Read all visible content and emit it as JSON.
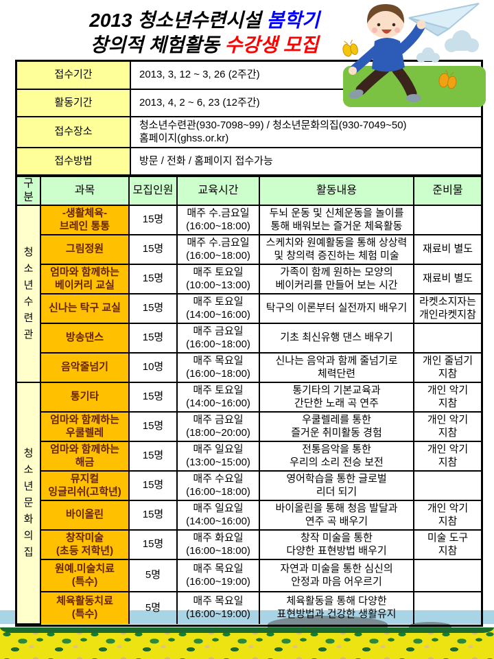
{
  "title": {
    "line1_main": "2013 청소년수련시설 ",
    "line1_accent": "봄학기",
    "line2_main": "창의적 체험활동 ",
    "line2_accent": "수강생 모집"
  },
  "info_table": {
    "rows": [
      {
        "label": "접수기간",
        "value": "2013, 3, 12 ~ 3, 26 (2주간)"
      },
      {
        "label": "활동기간",
        "value": "2013, 4, 2 ~ 6, 23 (12주간)"
      },
      {
        "label": "접수장소",
        "value": "청소년수련관(930-7098~99) / 청소년문화의집(930-7049~50)\n홈페이지(ghss.or.kr)"
      },
      {
        "label": "접수방법",
        "value": "방문 / 전화 / 홈페이지 접수가능"
      }
    ]
  },
  "program_table": {
    "headers": [
      "구분",
      "과목",
      "모집인원",
      "교육시간",
      "활동내용",
      "준비물"
    ],
    "groups": [
      {
        "name": "청소년수련관",
        "rows": [
          {
            "subject": "-생활체육-\n브레인 통통",
            "capacity": "15명",
            "schedule": "매주 수.금요일\n(16:00~18:00)",
            "content": "두뇌 운동 및 신체운동을 놀이를\n통해 배워보는 즐거운 체육활동",
            "materials": ""
          },
          {
            "subject": "그림정원",
            "capacity": "15명",
            "schedule": "매주 수.금요일\n(16:00~18:00)",
            "content": "스케치와 원예활동을 통해 상상력\n및 창의력 증진하는 체험 미술",
            "materials": "재료비 별도"
          },
          {
            "subject": "엄마와 함께하는\n베이커리 교실",
            "capacity": "15명",
            "schedule": "매주 토요일\n(10:00~13:00)",
            "content": "가족이 함께 원하는 모양의\n베이커리를 만들어 보는 시간",
            "materials": "재료비 별도"
          },
          {
            "subject": "신나는 탁구 교실",
            "capacity": "15명",
            "schedule": "매주 토요일\n(14:00~16:00)",
            "content": "탁구의 이론부터 실전까지 배우기",
            "materials": "라켓소지자는\n개인라켓지참"
          },
          {
            "subject": "방송댄스",
            "capacity": "15명",
            "schedule": "매주 금요일\n(16:00~18:00)",
            "content": "기초 최신유행 댄스 배우기",
            "materials": ""
          },
          {
            "subject": "음악줄넘기",
            "capacity": "10명",
            "schedule": "매주 목요일\n(16:00~18:00)",
            "content": "신나는 음악과 함께 줄넘기로\n체력단련",
            "materials": "개인 줄넘기\n지참"
          }
        ]
      },
      {
        "name": "청소년문화의집",
        "rows": [
          {
            "subject": "통기타",
            "capacity": "15명",
            "schedule": "매주 토요일\n(14:00~16:00)",
            "content": "통기타의 기본교육과\n간단한 노래 곡 연주",
            "materials": "개인 악기\n지참"
          },
          {
            "subject": "엄마와 함께하는\n우쿨렐레",
            "capacity": "15명",
            "schedule": "매주 금요일\n(18:00~20:00)",
            "content": "우쿨렐레를 통한\n즐거운 취미활동 경험",
            "materials": "개인 악기\n지참"
          },
          {
            "subject": "엄마와 함께하는\n해금",
            "capacity": "15명",
            "schedule": "매주 일요일\n(13:00~15:00)",
            "content": "전통음악을 통한\n우리의 소리 전승 보전",
            "materials": "개인 악기\n지참"
          },
          {
            "subject": "뮤지컬\n잉글리쉬(고학년)",
            "capacity": "15명",
            "schedule": "매주 수요일\n(16:00~18:00)",
            "content": "영어학습을 통한 글로벌\n리더 되기",
            "materials": ""
          },
          {
            "subject": "바이올린",
            "capacity": "15명",
            "schedule": "매주 일요일\n(14:00~16:00)",
            "content": "바이올린을 통해 청음 발달과\n연주 곡 배우기",
            "materials": "개인 악기\n지참"
          },
          {
            "subject": "창작미술\n(초등 저학년)",
            "capacity": "15명",
            "schedule": "매주 화요일\n(16:00~18:00)",
            "content": "창작 미술을 통한\n다양한 표현방법 배우기",
            "materials": "미술 도구\n지참"
          },
          {
            "subject": "원예.미술치료\n(특수)",
            "capacity": "5명",
            "schedule": "매주 목요일\n(16:00~19:00)",
            "content": "자연과 미술을 통한 심신의\n안정과 마음 어우르기",
            "materials": ""
          },
          {
            "subject": "체육활동치료\n(특수)",
            "capacity": "5명",
            "schedule": "매주 목요일\n(16:00~19:00)",
            "content": "체육활동을 통해 다양한\n표현방법과 건강한 생활유지",
            "materials": ""
          }
        ]
      }
    ]
  },
  "decorations": {
    "top_right_illustration": "boy-with-paper-airplane",
    "butterflies": "yellow-butterflies",
    "bottom_strip": "canola-flower-field-landscape"
  },
  "colors": {
    "title_accent_blue": "#0000FF",
    "title_accent_red": "#FF0000",
    "header_bg": "#CCFFCC",
    "info_label_bg": "#FFFF99",
    "subject_bg": "#FFC000",
    "group_bg": "#FFFFCC",
    "sky_band": "#A9D4E6",
    "field_yellow": "#EDE312",
    "field_green": "#1C6B2E",
    "grass_green": "#7CC242"
  }
}
